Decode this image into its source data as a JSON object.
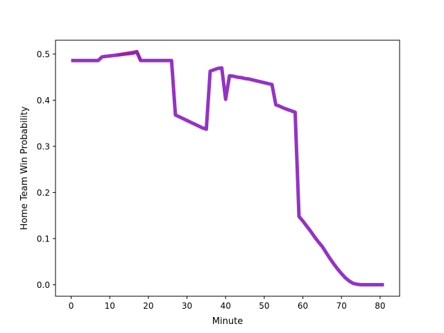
{
  "chart_data": {
    "type": "line",
    "title": "",
    "xlabel": "Minute",
    "ylabel": "Home Team Win Probability",
    "xlim": [
      -4.05,
      85.05
    ],
    "ylim": [
      -0.025,
      0.53
    ],
    "xticks": [
      0,
      10,
      20,
      30,
      40,
      50,
      60,
      70,
      80
    ],
    "yticks": [
      0.0,
      0.1,
      0.2,
      0.3,
      0.4,
      0.5
    ],
    "ytick_labels": [
      "0.0",
      "0.1",
      "0.2",
      "0.3",
      "0.4",
      "0.5"
    ],
    "grid": false,
    "legend": "none",
    "series": [
      {
        "color": "#ff3333",
        "x": [
          12,
          14,
          17,
          18
        ],
        "y": [
          0.498,
          0.501,
          0.505,
          0.486
        ]
      },
      {
        "color": "#8a1cc0",
        "x": [
          0,
          1,
          2,
          3,
          4,
          5,
          6,
          7,
          8,
          9,
          10,
          11,
          12,
          13,
          14,
          15,
          16,
          17,
          18,
          19,
          20,
          21,
          22,
          23,
          24,
          25,
          26,
          27,
          28,
          29,
          30,
          31,
          32,
          33,
          34,
          35,
          36,
          37,
          38,
          39,
          40,
          41,
          42,
          43,
          44,
          45,
          46,
          47,
          48,
          49,
          50,
          51,
          52,
          53,
          54,
          55,
          56,
          57,
          58,
          59,
          60,
          61,
          62,
          63,
          64,
          65,
          66,
          67,
          68,
          69,
          70,
          71,
          72,
          73,
          74,
          75,
          76,
          77,
          78,
          79,
          80,
          81
        ],
        "y": [
          0.486,
          0.486,
          0.486,
          0.486,
          0.486,
          0.486,
          0.486,
          0.486,
          0.494,
          0.495,
          0.496,
          0.497,
          0.498,
          0.499,
          0.5,
          0.501,
          0.502,
          0.505,
          0.486,
          0.486,
          0.486,
          0.486,
          0.486,
          0.486,
          0.486,
          0.486,
          0.486,
          0.368,
          0.364,
          0.36,
          0.356,
          0.352,
          0.348,
          0.344,
          0.34,
          0.337,
          0.463,
          0.466,
          0.469,
          0.47,
          0.402,
          0.453,
          0.452,
          0.45,
          0.449,
          0.447,
          0.446,
          0.444,
          0.442,
          0.44,
          0.438,
          0.436,
          0.434,
          0.39,
          0.387,
          0.383,
          0.38,
          0.377,
          0.374,
          0.148,
          0.138,
          0.127,
          0.116,
          0.104,
          0.093,
          0.083,
          0.07,
          0.057,
          0.045,
          0.034,
          0.024,
          0.015,
          0.008,
          0.003,
          0.001,
          0.0,
          0.0,
          0.0,
          0.0,
          0.0,
          0.0,
          0.0
        ]
      }
    ]
  }
}
